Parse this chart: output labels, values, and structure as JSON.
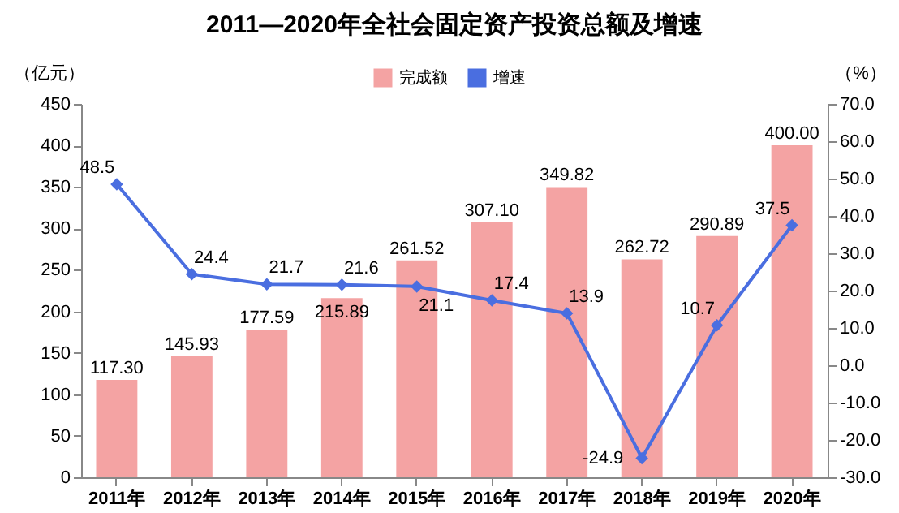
{
  "chart_data": {
    "type": "bar",
    "title": "2011—2020年全社会固定资产投资总额及增速",
    "categories": [
      "2011年",
      "2012年",
      "2013年",
      "2014年",
      "2015年",
      "2016年",
      "2017年",
      "2018年",
      "2019年",
      "2020年"
    ],
    "ylabel": "（亿元）",
    "y2label": "（%）",
    "ylim": [
      0,
      450
    ],
    "yticks": [
      0,
      50,
      100,
      150,
      200,
      250,
      300,
      350,
      400,
      450
    ],
    "y2lim": [
      -30,
      70
    ],
    "y2ticks": [
      {
        "value": -30,
        "label": "-30.0"
      },
      {
        "value": -20,
        "label": "-20.0"
      },
      {
        "value": -10,
        "label": "-10.0"
      },
      {
        "value": 0,
        "label": "0.0"
      },
      {
        "value": 10,
        "label": "10.0"
      },
      {
        "value": 20,
        "label": "20.0"
      },
      {
        "value": 30,
        "label": "30.0"
      },
      {
        "value": 40,
        "label": "40.0"
      },
      {
        "value": 50,
        "label": "50.0"
      },
      {
        "value": 60,
        "label": "60.0"
      },
      {
        "value": 70,
        "label": "70.0"
      }
    ],
    "legend": "top",
    "grid": false,
    "series": [
      {
        "name": "完成额",
        "type": "bar",
        "color": "#f4a3a3",
        "values": [
          117.3,
          145.93,
          177.59,
          215.89,
          261.52,
          307.1,
          349.82,
          262.72,
          290.89,
          400.0
        ],
        "value_labels": [
          "117.30",
          "145.93",
          "177.59",
          "215.89",
          "261.52",
          "307.10",
          "349.82",
          "262.72",
          "290.89",
          "400.00"
        ]
      },
      {
        "name": "增速",
        "type": "line",
        "axis": "y2",
        "color": "#4a6ee0",
        "marker": "diamond",
        "line_style": "solid",
        "values": [
          48.5,
          24.4,
          21.7,
          21.6,
          21.1,
          17.4,
          13.9,
          -24.9,
          10.7,
          37.5
        ],
        "value_labels": [
          "48.5",
          "24.4",
          "21.7",
          "21.6",
          "21.1",
          "17.4",
          "13.9",
          "-24.9",
          "10.7",
          "37.5"
        ]
      }
    ]
  }
}
